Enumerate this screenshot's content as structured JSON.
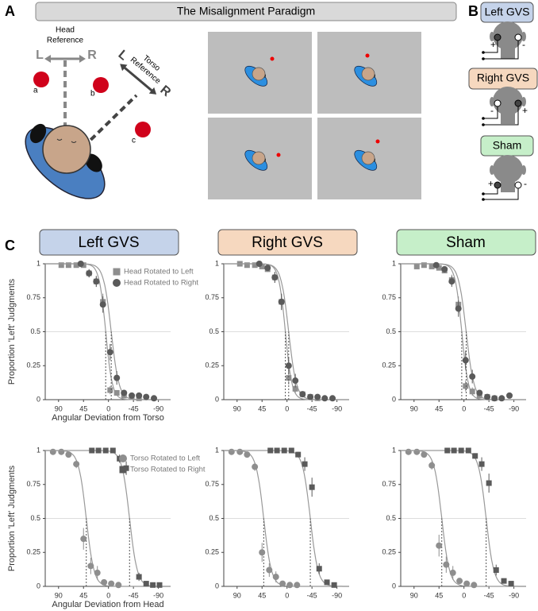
{
  "panel_a": {
    "letter": "A",
    "title": "The Misalignment Paradigm",
    "head_reference": [
      "Head",
      "Reference"
    ],
    "head_l": "L",
    "head_r": "R",
    "torso_reference": [
      "Torso",
      "Reference"
    ],
    "torso_l": "L",
    "torso_r": "R",
    "targets": [
      "a",
      "b",
      "c"
    ]
  },
  "panel_b": {
    "letter": "B",
    "conditions": [
      {
        "label": "Left GVS",
        "left_sign": "+",
        "right_sign": "-"
      },
      {
        "label": "Right GVS",
        "left_sign": "-",
        "right_sign": "+"
      },
      {
        "label": "Sham",
        "left_sign": "+",
        "right_sign": "-"
      }
    ]
  },
  "panel_c": {
    "letter": "C",
    "columns": [
      "Left GVS",
      "Right GVS",
      "Sham"
    ]
  },
  "chart_data": [
    {
      "type": "scatter",
      "xlim": [
        114,
        -112
      ],
      "ylim": [
        0,
        1
      ],
      "xticks": [
        90,
        45,
        0,
        -45,
        -90
      ],
      "yticks": [
        0,
        0.25,
        0.5,
        0.75,
        1
      ],
      "hline": 0.5,
      "xlabel": "Angular Deviation from Torso",
      "ylabel": "Proportion 'Left' Judgments",
      "legend": "upper right",
      "series": [
        {
          "name": "Head Rotated to Left",
          "color": "#8e8e8e",
          "marker": "square",
          "x": [
            85,
            72,
            58,
            45,
            35,
            22,
            10,
            -3,
            -15,
            -28,
            -42,
            -55
          ],
          "values": [
            0.99,
            0.99,
            0.99,
            0.99,
            0.93,
            0.87,
            0.72,
            0.07,
            0.05,
            0.03,
            0.02,
            0.01
          ],
          "errors": [
            0,
            0,
            0,
            0,
            0.03,
            0.04,
            0.06,
            0.03,
            0.02,
            0.01,
            0.01,
            0
          ],
          "pse": 5,
          "scale": 6
        },
        {
          "name": "Head Rotated to Right",
          "color": "#5a5a5a",
          "marker": "circle",
          "x": [
            50,
            35,
            22,
            10,
            -3,
            -15,
            -28,
            -42,
            -55,
            -68,
            -82
          ],
          "values": [
            1,
            0.93,
            0.87,
            0.7,
            0.35,
            0.16,
            0.05,
            0.03,
            0.03,
            0.02,
            0.01
          ],
          "errors": [
            0,
            0.03,
            0.04,
            0.06,
            0.06,
            0.05,
            0.02,
            0.01,
            0.01,
            0.01,
            0
          ],
          "pse": -5,
          "scale": 7
        }
      ]
    },
    {
      "type": "scatter",
      "xlim": [
        114,
        -112
      ],
      "ylim": [
        0,
        1
      ],
      "xticks": [
        90,
        45,
        0,
        -45,
        -90
      ],
      "yticks": [
        0,
        0.25,
        0.5,
        0.75,
        1
      ],
      "hline": 0.5,
      "series": [
        {
          "color": "#8e8e8e",
          "marker": "square",
          "x": [
            85,
            72,
            58,
            45,
            35,
            22,
            10,
            -3,
            -15,
            -28,
            -42,
            -55
          ],
          "values": [
            1,
            0.99,
            0.99,
            0.98,
            0.96,
            0.9,
            0.72,
            0.16,
            0.08,
            0.04,
            0.02,
            0.01
          ],
          "errors": [
            0,
            0,
            0,
            0.01,
            0.02,
            0.04,
            0.06,
            0.05,
            0.03,
            0.02,
            0.01,
            0
          ],
          "pse": 3,
          "scale": 6
        },
        {
          "color": "#5a5a5a",
          "marker": "circle",
          "x": [
            50,
            35,
            22,
            10,
            -3,
            -15,
            -28,
            -42,
            -55,
            -68,
            -82
          ],
          "values": [
            1,
            0.97,
            0.9,
            0.72,
            0.25,
            0.14,
            0.04,
            0.02,
            0.02,
            0.01,
            0.01
          ],
          "errors": [
            0,
            0.02,
            0.04,
            0.06,
            0.06,
            0.05,
            0.02,
            0.01,
            0.01,
            0,
            0
          ],
          "pse": -3,
          "scale": 7
        }
      ]
    },
    {
      "type": "scatter",
      "xlim": [
        114,
        -112
      ],
      "ylim": [
        0,
        1
      ],
      "xticks": [
        90,
        45,
        0,
        -45,
        -90
      ],
      "yticks": [
        0,
        0.25,
        0.5,
        0.75,
        1
      ],
      "hline": 0.5,
      "series": [
        {
          "color": "#8e8e8e",
          "marker": "square",
          "x": [
            85,
            72,
            58,
            45,
            35,
            22,
            10,
            -3,
            -15,
            -28,
            -42,
            -55
          ],
          "values": [
            0.98,
            0.99,
            0.98,
            0.97,
            0.95,
            0.88,
            0.7,
            0.1,
            0.06,
            0.03,
            0.02,
            0.01
          ],
          "errors": [
            0,
            0,
            0,
            0.01,
            0.02,
            0.04,
            0.06,
            0.04,
            0.03,
            0.02,
            0.01,
            0
          ],
          "pse": 4,
          "scale": 6
        },
        {
          "color": "#5a5a5a",
          "marker": "circle",
          "x": [
            50,
            35,
            22,
            10,
            -3,
            -15,
            -28,
            -42,
            -55,
            -68,
            -82
          ],
          "values": [
            0.99,
            0.96,
            0.87,
            0.67,
            0.29,
            0.17,
            0.05,
            0.02,
            0.01,
            0.01,
            0.03
          ],
          "errors": [
            0,
            0.02,
            0.04,
            0.06,
            0.07,
            0.05,
            0.02,
            0.01,
            0.01,
            0,
            0.01
          ],
          "pse": -4,
          "scale": 7
        }
      ]
    },
    {
      "type": "scatter",
      "xlim": [
        114,
        -112
      ],
      "ylim": [
        0,
        1
      ],
      "xticks": [
        90,
        45,
        0,
        -45,
        -90
      ],
      "yticks": [
        0,
        0.25,
        0.5,
        0.75,
        1
      ],
      "hline": 0.5,
      "xlabel": "Angular Deviation from Head",
      "ylabel": "Proportion 'Left' Judgments",
      "legend": "upper right",
      "series": [
        {
          "name": "Torso Rotated to Left",
          "color": "#8e8e8e",
          "marker": "circle",
          "x": [
            100,
            85,
            72,
            58,
            45,
            32,
            20,
            8,
            -5,
            -18
          ],
          "values": [
            0.99,
            0.99,
            0.97,
            0.9,
            0.35,
            0.15,
            0.1,
            0.03,
            0.02,
            0.01
          ],
          "errors": [
            0,
            0,
            0.01,
            0.03,
            0.08,
            0.06,
            0.05,
            0.02,
            0.01,
            0
          ],
          "pse": 40,
          "scale": 7
        },
        {
          "name": "Torso Rotated to Right",
          "color": "#5a5a5a",
          "marker": "square",
          "x": [
            30,
            18,
            5,
            -8,
            -20,
            -32,
            -55,
            -68,
            -80,
            -92
          ],
          "values": [
            1,
            1,
            1,
            1,
            0.94,
            0.87,
            0.07,
            0.02,
            0.01,
            0.01
          ],
          "errors": [
            0,
            0,
            0,
            0,
            0.03,
            0.05,
            0.03,
            0.01,
            0,
            0
          ],
          "pse": -38,
          "scale": 7
        }
      ]
    },
    {
      "type": "scatter",
      "xlim": [
        114,
        -112
      ],
      "ylim": [
        0,
        1
      ],
      "xticks": [
        90,
        45,
        0,
        -45,
        -90
      ],
      "yticks": [
        0,
        0.25,
        0.5,
        0.75,
        1
      ],
      "hline": 0.5,
      "series": [
        {
          "color": "#8e8e8e",
          "marker": "circle",
          "x": [
            100,
            85,
            72,
            58,
            45,
            32,
            20,
            8,
            -5,
            -18
          ],
          "values": [
            0.99,
            0.99,
            0.97,
            0.88,
            0.25,
            0.12,
            0.07,
            0.02,
            0.01,
            0.01
          ],
          "errors": [
            0,
            0,
            0.01,
            0.03,
            0.07,
            0.05,
            0.04,
            0.01,
            0,
            0
          ],
          "pse": 42,
          "scale": 7
        },
        {
          "color": "#5a5a5a",
          "marker": "square",
          "x": [
            30,
            18,
            5,
            -8,
            -20,
            -32,
            -45,
            -58,
            -72,
            -85
          ],
          "values": [
            1,
            1,
            1,
            1,
            0.97,
            0.9,
            0.73,
            0.13,
            0.03,
            0.01
          ],
          "errors": [
            0,
            0,
            0,
            0,
            0.02,
            0.05,
            0.07,
            0.04,
            0.01,
            0
          ],
          "pse": -42,
          "scale": 7
        }
      ]
    },
    {
      "type": "scatter",
      "xlim": [
        114,
        -112
      ],
      "ylim": [
        0,
        1
      ],
      "xticks": [
        90,
        45,
        0,
        -45,
        -90
      ],
      "yticks": [
        0,
        0.25,
        0.5,
        0.75,
        1
      ],
      "hline": 0.5,
      "series": [
        {
          "color": "#8e8e8e",
          "marker": "circle",
          "x": [
            100,
            85,
            72,
            58,
            45,
            32,
            20,
            8,
            -5,
            -18
          ],
          "values": [
            0.99,
            0.99,
            0.97,
            0.89,
            0.3,
            0.16,
            0.1,
            0.04,
            0.02,
            0.01
          ],
          "errors": [
            0,
            0,
            0.01,
            0.03,
            0.08,
            0.06,
            0.05,
            0.02,
            0.01,
            0
          ],
          "pse": 40,
          "scale": 7
        },
        {
          "color": "#5a5a5a",
          "marker": "square",
          "x": [
            30,
            18,
            5,
            -8,
            -20,
            -32,
            -45,
            -58,
            -72,
            -85
          ],
          "values": [
            1,
            1,
            1,
            1,
            0.96,
            0.9,
            0.76,
            0.12,
            0.04,
            0.02
          ],
          "errors": [
            0,
            0,
            0,
            0,
            0.02,
            0.05,
            0.07,
            0.04,
            0.01,
            0
          ],
          "pse": -40,
          "scale": 7
        }
      ]
    }
  ]
}
